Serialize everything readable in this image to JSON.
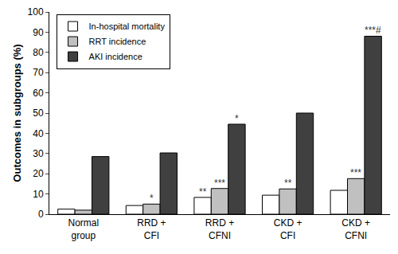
{
  "chart_data": {
    "type": "bar",
    "y_label": "Outcomes in subgroups (%)",
    "categories": [
      "Normal\ngroup",
      "RRD +\nCFI",
      "RRD +\nCFNI",
      "CKD +\nCFI",
      "CKD +\nCFNI"
    ],
    "series": [
      {
        "name": "In-hospital mortality",
        "color": "#ffffff",
        "values": [
          2.5,
          4.3,
          8.3,
          9.4,
          11.8
        ]
      },
      {
        "name": "RRT incidence",
        "color": "#c0c0c0",
        "values": [
          2,
          5,
          12.7,
          12.5,
          17.6
        ]
      },
      {
        "name": "AKI incidence",
        "color": "#404040",
        "values": [
          28.5,
          30.3,
          44.5,
          50,
          88
        ]
      }
    ],
    "annotations": [
      {
        "category": "RRD +\nCFI",
        "series": "RRT incidence",
        "text": "*"
      },
      {
        "category": "RRD +\nCFNI",
        "series": "In-hospital mortality",
        "text": "**"
      },
      {
        "category": "RRD +\nCFNI",
        "series": "RRT incidence",
        "text": "***"
      },
      {
        "category": "RRD +\nCFNI",
        "series": "AKI incidence",
        "text": "*"
      },
      {
        "category": "CKD +\nCFI",
        "series": "RRT incidence",
        "text": "**"
      },
      {
        "category": "CKD +\nCFNI",
        "series": "RRT incidence",
        "text": "***"
      },
      {
        "category": "CKD +\nCFNI",
        "series": "AKI incidence",
        "text": "***#"
      }
    ],
    "ylim": [
      0,
      100
    ],
    "yticks": [
      0,
      10,
      20,
      30,
      40,
      50,
      60,
      70,
      80,
      90,
      100
    ],
    "grid": false,
    "legend": "top-left"
  }
}
